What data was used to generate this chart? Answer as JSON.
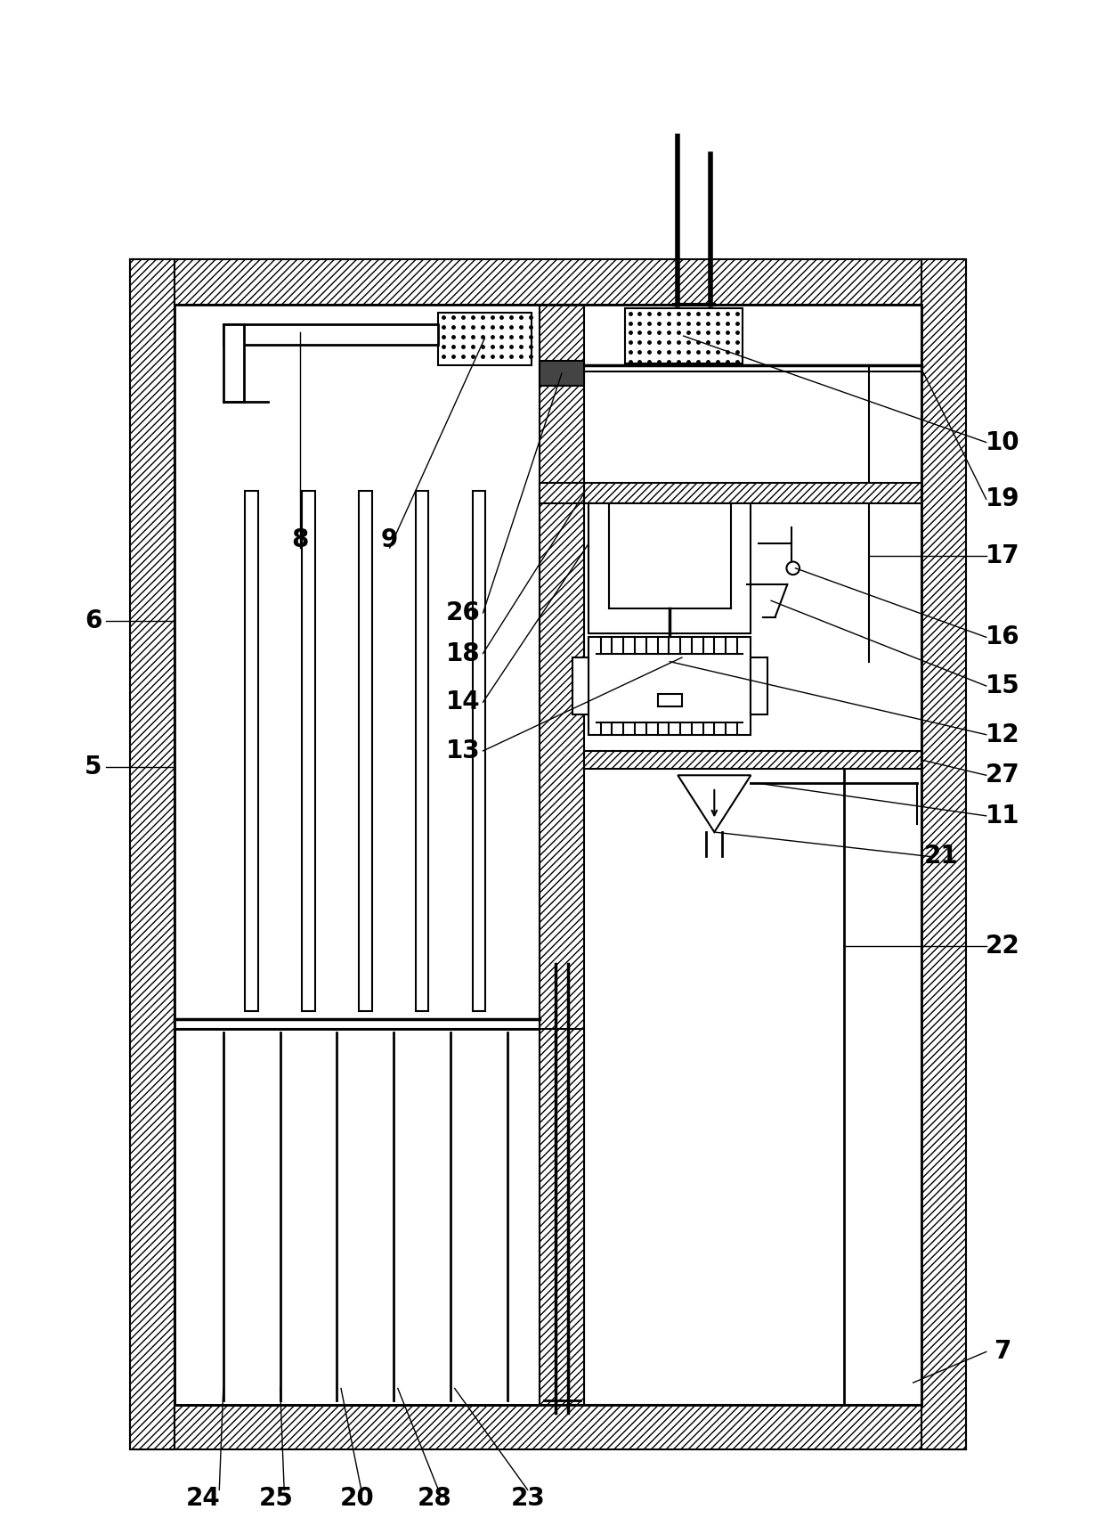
{
  "bg_color": "#ffffff",
  "line_color": "#000000",
  "fig_width": 12.4,
  "fig_height": 17.13,
  "dpi": 100
}
